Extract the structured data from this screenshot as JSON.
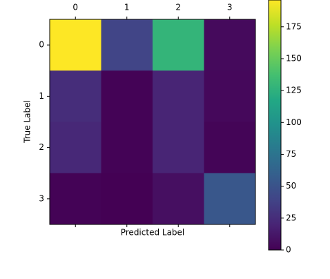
{
  "chart_data": {
    "type": "heatmap",
    "x_categories": [
      "0",
      "1",
      "2",
      "3"
    ],
    "y_categories": [
      "0",
      "1",
      "2",
      "3"
    ],
    "xlabel": "Predicted Label",
    "ylabel": "True Label",
    "values": [
      [
        196,
        40,
        128,
        5
      ],
      [
        25,
        1,
        20,
        4
      ],
      [
        22,
        1,
        20,
        2
      ],
      [
        1,
        0,
        8,
        53
      ]
    ],
    "colormap": "viridis",
    "clim": [
      0,
      196
    ],
    "cticks": [
      0,
      25,
      50,
      75,
      100,
      125,
      150,
      175
    ]
  }
}
